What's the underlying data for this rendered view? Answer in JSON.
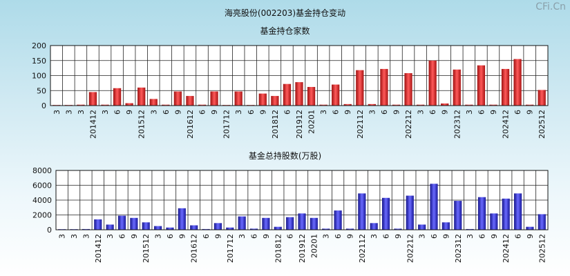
{
  "page": {
    "title": "海亮股份(002203)基金持仓变动",
    "watermark": "CFi.Cn"
  },
  "chart_data": [
    {
      "type": "bar",
      "title": "基金持仓家数",
      "xlabel": "",
      "ylabel": "",
      "ylim": [
        0,
        200
      ],
      "yticks": [
        0,
        50,
        100,
        150,
        200
      ],
      "grid": true,
      "categories": [
        "3",
        "3",
        "3",
        "201412",
        "3",
        "6",
        "9",
        "201512",
        "3",
        "6",
        "9",
        "201612",
        "6",
        "9",
        "201712",
        "3",
        "6",
        "9",
        "201812",
        "6",
        "201912",
        "20201",
        "3",
        "6",
        "9",
        "202112",
        "3",
        "6",
        "9",
        "202212",
        "3",
        "6",
        "9",
        "202312",
        "3",
        "6",
        "9",
        "202412",
        "6",
        "9",
        "202512"
      ],
      "values": [
        2,
        2,
        3,
        45,
        3,
        58,
        8,
        60,
        22,
        3,
        47,
        32,
        3,
        47,
        2,
        47,
        2,
        40,
        32,
        72,
        78,
        62,
        3,
        70,
        5,
        118,
        5,
        122,
        3,
        108,
        3,
        150,
        7,
        120,
        3,
        134,
        3,
        122,
        155,
        3,
        52
      ],
      "color": "#e83030"
    },
    {
      "type": "bar",
      "title": "基金总持股数(万股)",
      "xlabel": "",
      "ylabel": "",
      "ylim": [
        0,
        8000
      ],
      "yticks": [
        0,
        2000,
        4000,
        6000,
        8000
      ],
      "grid": true,
      "categories": [
        "3",
        "3",
        "3",
        "201412",
        "3",
        "6",
        "9",
        "201512",
        "3",
        "6",
        "9",
        "201612",
        "6",
        "9",
        "201712",
        "3",
        "6",
        "9",
        "201812",
        "6",
        "201912",
        "20201",
        "3",
        "6",
        "9",
        "202112",
        "3",
        "6",
        "9",
        "202212",
        "3",
        "6",
        "9",
        "202312",
        "3",
        "6",
        "9",
        "202412",
        "6",
        "9",
        "202512"
      ],
      "values": [
        80,
        80,
        100,
        1400,
        700,
        1900,
        1600,
        1000,
        500,
        300,
        2900,
        600,
        100,
        900,
        300,
        1800,
        150,
        1600,
        400,
        1700,
        2200,
        1600,
        150,
        2600,
        150,
        4900,
        900,
        4300,
        150,
        4600,
        700,
        6200,
        1000,
        3900,
        100,
        4400,
        2200,
        4200,
        4900,
        400,
        2100
      ],
      "color": "#3535dd"
    }
  ]
}
